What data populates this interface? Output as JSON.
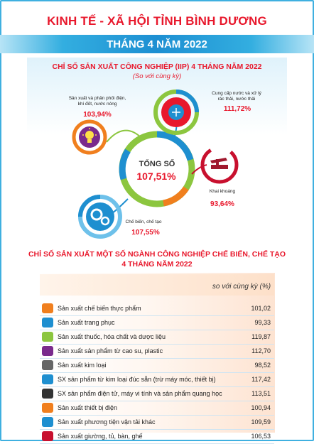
{
  "header": {
    "title": "KINH TẾ - XÃ HỘI TỈNH BÌNH DƯƠNG",
    "month": "THÁNG 4 NĂM 2022"
  },
  "iip": {
    "title": "CHỈ SỐ SẢN XUẤT CÔNG NGHIỆP (IIP) 4  THÁNG  NĂM 2022",
    "subtitle": "(So với cùng kỳ)",
    "center_label": "TỔNG SỐ",
    "center_value": "107,51%",
    "items": [
      {
        "label_lines": [
          "Sản xuất và phân phối điện,",
          "khí đốt, nước nóng"
        ],
        "value": "103,94%",
        "icon": "lightbulb-icon",
        "color": "#f07f1e"
      },
      {
        "label_lines": [
          "Cung cấp nước và xử lý",
          "rác thải, nước thải"
        ],
        "value": "111,72%",
        "icon": "water-treatment-icon",
        "color": "#e8182c"
      },
      {
        "label_lines": [
          "Khai khoáng"
        ],
        "value": "93,64%",
        "icon": "oil-pump-icon",
        "color": "#c8102e"
      },
      {
        "label_lines": [
          "Chế biến, chế tạo"
        ],
        "value": "107,55%",
        "icon": "gears-icon",
        "color": "#1e8fd0"
      }
    ]
  },
  "manufacturing": {
    "title_line1": "CHỈ SỐ SẢN XUẤT MỘT SỐ NGÀNH CÔNG NGHIỆP CHẾ BIẾN, CHẾ TẠO",
    "title_line2": "4 THÁNG NĂM 2022",
    "column_header": "so với cùng kỳ (%)",
    "rows": [
      {
        "label": "Sản xuất chế biến thực phẩm",
        "value": "101,02",
        "icon": "food-icon"
      },
      {
        "label": "Sản xuất trang phục",
        "value": "99,33",
        "icon": "shirt-icon"
      },
      {
        "label": "Sản xuất thuốc, hóa chất và dược liệu",
        "value": "119,87",
        "icon": "medicine-icon"
      },
      {
        "label": "Sản xuất sản phẩm từ cao su, plastic",
        "value": "112,70",
        "icon": "rubber-icon"
      },
      {
        "label": "Sản xuất kim loại",
        "value": "98,52",
        "icon": "metal-icon"
      },
      {
        "label": "SX sản phẩm từ kim loại đúc sẵn (trừ máy móc, thiết bị)",
        "value": "117,42",
        "icon": "cast-metal-icon"
      },
      {
        "label": "SX sản phẩm điện tử, máy vi tính và sản phẩm quang học",
        "value": "113,51",
        "icon": "computer-icon"
      },
      {
        "label": "Sản xuất thiết bị điện",
        "value": "100,94",
        "icon": "electric-device-icon"
      },
      {
        "label": "Sản xuất phương tiện vận tải khác",
        "value": "109,59",
        "icon": "motorbike-icon"
      },
      {
        "label": "Sản xuất giường, tủ, bàn, ghế",
        "value": "106,53",
        "icon": "furniture-icon"
      }
    ]
  }
}
